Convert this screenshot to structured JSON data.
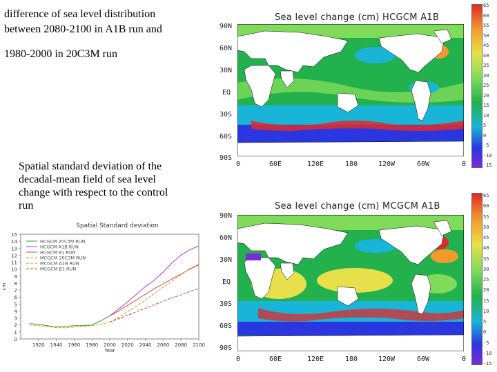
{
  "left_text": {
    "line1": "difference of sea level distribution",
    "line2": "between 2080-2100 in A1B run and",
    "line3": "1980-2000 in 20C3M run",
    "deviation_caption": [
      "Spatial standard deviation of the",
      "decadal-mean field of sea level",
      "change with respect to the control",
      "run"
    ]
  },
  "map_top": {
    "title": "Sea level change (cm) HCGCM A1B",
    "lat_labels": [
      "90N",
      "60N",
      "30N",
      "EQ",
      "30S",
      "60S",
      "90S"
    ],
    "lon_labels": [
      "0",
      "60E",
      "120E",
      "180",
      "120W",
      "60W",
      "0"
    ],
    "colorbar_labels": [
      "65",
      "60",
      "55",
      "50",
      "45",
      "40",
      "35",
      "30",
      "25",
      "20",
      "15",
      "10",
      "5",
      "0",
      "-5",
      "-10",
      "-15"
    ]
  },
  "map_bottom": {
    "title": "Sea level change (cm) MCGCM A1B",
    "lat_labels": [
      "90N",
      "60N",
      "30N",
      "EQ",
      "30S",
      "60S",
      "90S"
    ],
    "lon_labels": [
      "0",
      "60E",
      "120E",
      "180",
      "120W",
      "60W",
      "0"
    ],
    "colorbar_labels": [
      "65",
      "60",
      "55",
      "50",
      "45",
      "40",
      "35",
      "30",
      "25",
      "20",
      "15",
      "10",
      "5",
      "0",
      "-5",
      "-10",
      "-15"
    ]
  },
  "colors": {
    "ocean_green": "#22b14c",
    "ocean_light_green": "#7fdc5a",
    "ocean_cyan": "#19b5d8",
    "ocean_blue": "#2a37e0",
    "ocean_yellow": "#e8e04a",
    "ocean_orange": "#f39a2c",
    "ocean_red": "#e02a2a",
    "ocean_purple": "#7b2bd8"
  },
  "chart_data": {
    "type": "line",
    "title": "Spatial Standard deviation",
    "xlabel": "Year",
    "ylabel": "cm",
    "xlim": [
      1900,
      2100
    ],
    "ylim": [
      0,
      15
    ],
    "x_ticks": [
      1920,
      1940,
      1960,
      1980,
      2000,
      2020,
      2040,
      2060,
      2080,
      2100
    ],
    "y_ticks": [
      0,
      1,
      2,
      3,
      4,
      5,
      6,
      7,
      8,
      9,
      10,
      11,
      12,
      13,
      14,
      15
    ],
    "series": [
      {
        "name": "HCGCM 20C3M RUN",
        "color": "#2ca02c",
        "dash": "solid",
        "x": [
          1910,
          1920,
          1930,
          1940,
          1950,
          1960,
          1970,
          1980,
          1990,
          2000
        ],
        "y": [
          2.2,
          2.1,
          1.9,
          1.7,
          1.8,
          1.9,
          1.9,
          2.0,
          2.6,
          3.3
        ]
      },
      {
        "name": "HCGCM A1B RUN",
        "color": "#b03ac8",
        "dash": "solid",
        "x": [
          2000,
          2010,
          2020,
          2030,
          2040,
          2050,
          2060,
          2070,
          2080,
          2090,
          2100
        ],
        "y": [
          3.3,
          4.3,
          5.3,
          6.4,
          7.5,
          8.4,
          9.6,
          10.9,
          12.0,
          12.8,
          13.3
        ]
      },
      {
        "name": "HCGCM B1 RUN",
        "color": "#d04a4a",
        "dash": "solid",
        "x": [
          2000,
          2010,
          2020,
          2030,
          2040,
          2050,
          2060,
          2070,
          2080,
          2090,
          2100
        ],
        "y": [
          3.3,
          4.0,
          4.8,
          5.6,
          6.4,
          7.2,
          7.9,
          8.6,
          9.3,
          10.0,
          10.6
        ]
      },
      {
        "name": "MCGCM 20C3M RUN",
        "color": "#e0a000",
        "dash": "dashed",
        "x": [
          1910,
          1920,
          1930,
          1940,
          1950,
          1960,
          1970,
          1980,
          1990,
          2000
        ],
        "y": [
          2.0,
          1.9,
          1.8,
          1.6,
          1.6,
          1.7,
          1.8,
          1.9,
          2.1,
          2.4
        ]
      },
      {
        "name": "MCGCM A1B RUN",
        "color": "#d89030",
        "dash": "dashed",
        "x": [
          2000,
          2010,
          2020,
          2030,
          2040,
          2050,
          2060,
          2070,
          2080,
          2090,
          2100
        ],
        "y": [
          2.4,
          3.1,
          3.9,
          4.7,
          5.6,
          6.5,
          7.4,
          8.3,
          9.2,
          10.1,
          10.7
        ]
      },
      {
        "name": "MCGCM B1 RUN",
        "color": "#c05030",
        "dash": "dashed",
        "x": [
          2000,
          2010,
          2020,
          2030,
          2040,
          2050,
          2060,
          2070,
          2080,
          2090,
          2100
        ],
        "y": [
          2.4,
          2.9,
          3.4,
          3.9,
          4.4,
          4.9,
          5.4,
          5.9,
          6.3,
          6.8,
          7.2
        ]
      }
    ]
  }
}
